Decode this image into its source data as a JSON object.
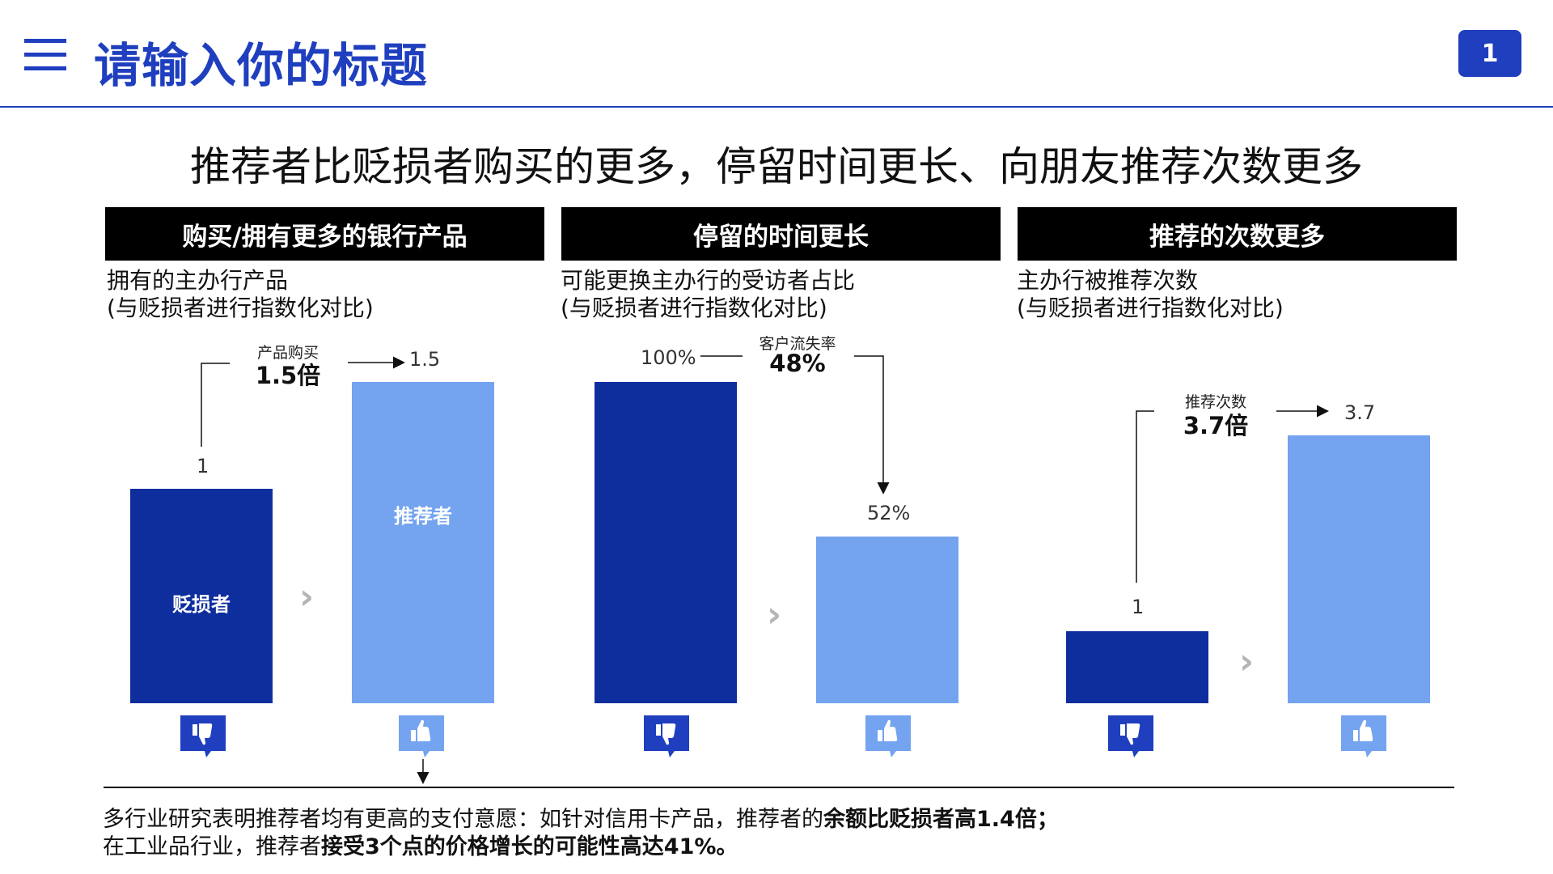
{
  "header": {
    "title": "请输入你的标题",
    "page_number": "1"
  },
  "headline": "推荐者比贬损者购买的更多，停留时间更长、向朋友推荐次数更多",
  "panels": [
    {
      "header": "购买/拥有更多的银行产品",
      "subtitle_line1": "拥有的主办行产品",
      "subtitle_line2": "(与贬损者进行指数化对比)",
      "annotation_label": "产品购买",
      "annotation_value": "1.5倍"
    },
    {
      "header": "停留的时间更长",
      "subtitle_line1": "可能更换主办行的受访者占比",
      "subtitle_line2": "(与贬损者进行指数化对比)",
      "annotation_label": "客户流失率",
      "annotation_value": "48%"
    },
    {
      "header": "推荐的次数更多",
      "subtitle_line1": "主办行被推荐次数",
      "subtitle_line2": "(与贬损者进行指数化对比)",
      "annotation_label": "推荐次数",
      "annotation_value": "3.7倍"
    }
  ],
  "chart_data": [
    {
      "type": "bar",
      "title": "购买/拥有更多的银行产品",
      "categories": [
        "贬损者",
        "推荐者"
      ],
      "values": [
        1,
        1.5
      ],
      "data_labels": [
        "1",
        "1.5"
      ],
      "colors": [
        "#0f2e9e",
        "#74a3f0"
      ]
    },
    {
      "type": "bar",
      "title": "停留的时间更长",
      "categories": [
        "贬损者",
        "推荐者"
      ],
      "values": [
        100,
        52
      ],
      "data_labels": [
        "100%",
        "52%"
      ],
      "colors": [
        "#0f2e9e",
        "#74a3f0"
      ]
    },
    {
      "type": "bar",
      "title": "推荐的次数更多",
      "categories": [
        "贬损者",
        "推荐者"
      ],
      "values": [
        1,
        3.7
      ],
      "data_labels": [
        "1",
        "3.7"
      ],
      "colors": [
        "#0f2e9e",
        "#74a3f0"
      ]
    }
  ],
  "footnote": {
    "line1_normal": "多行业研究表明推荐者均有更高的支付意愿：如针对信用卡产品，推荐者的",
    "line1_bold": "余额比贬损者高1.4倍；",
    "line2_normal": "在工业品行业，推荐者",
    "line2_bold": "接受3个点的价格增长的可能性高达41%。"
  },
  "icons": {
    "menu": "hamburger-menu-icon",
    "detractor": "thumbs-down-icon",
    "promoter": "thumbs-up-icon",
    "separator": "chevron-right-icon"
  },
  "colors": {
    "brand": "#1f3fbf",
    "detractor_bar": "#0f2e9e",
    "promoter_bar": "#74a3f0"
  }
}
